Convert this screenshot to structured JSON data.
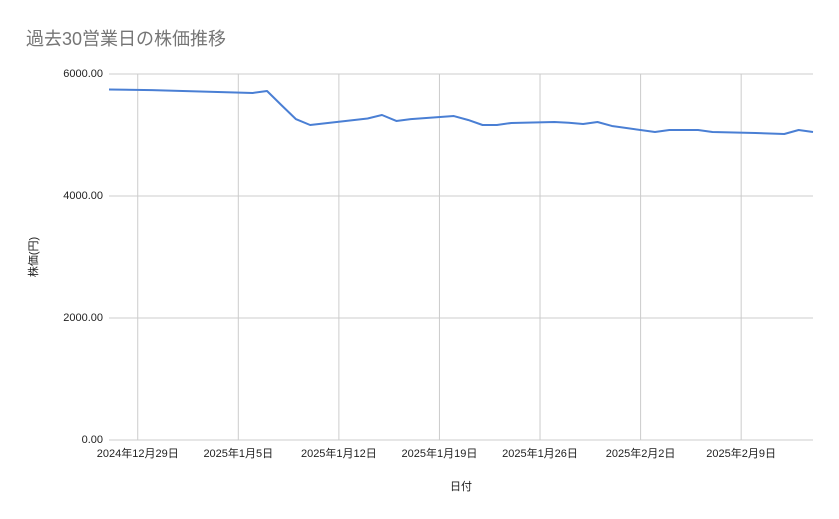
{
  "chart_data": {
    "type": "line",
    "title": "過去30営業日の株価推移",
    "xlabel": "日付",
    "ylabel": "株価(円)",
    "x": [
      "2024-12-27",
      "2024-12-30",
      "2025-01-06",
      "2025-01-07",
      "2025-01-08",
      "2025-01-09",
      "2025-01-10",
      "2025-01-14",
      "2025-01-15",
      "2025-01-16",
      "2025-01-17",
      "2025-01-20",
      "2025-01-21",
      "2025-01-22",
      "2025-01-23",
      "2025-01-24",
      "2025-01-27",
      "2025-01-28",
      "2025-01-29",
      "2025-01-30",
      "2025-01-31",
      "2025-02-03",
      "2025-02-04",
      "2025-02-05",
      "2025-02-06",
      "2025-02-07",
      "2025-02-10",
      "2025-02-12",
      "2025-02-13",
      "2025-02-14"
    ],
    "series": [
      {
        "name": "株価(円)",
        "color": "#4a7fd4",
        "values": [
          5746,
          5735,
          5689,
          5721,
          5490,
          5262,
          5164,
          5270,
          5328,
          5230,
          5260,
          5311,
          5246,
          5164,
          5164,
          5197,
          5213,
          5200,
          5180,
          5213,
          5148,
          5049,
          5082,
          5082,
          5082,
          5049,
          5033,
          5016,
          5082,
          5049
        ]
      }
    ],
    "xlim": [
      "2024-12-27",
      "2025-02-14"
    ],
    "xticks": [
      {
        "value": "2024-12-29",
        "label": "2024年12月29日"
      },
      {
        "value": "2025-01-05",
        "label": "2025年1月5日"
      },
      {
        "value": "2025-01-12",
        "label": "2025年1月12日"
      },
      {
        "value": "2025-01-19",
        "label": "2025年1月19日"
      },
      {
        "value": "2025-01-26",
        "label": "2025年1月26日"
      },
      {
        "value": "2025-02-02",
        "label": "2025年2月2日"
      },
      {
        "value": "2025-02-09",
        "label": "2025年2月9日"
      }
    ],
    "ylim": [
      0,
      6000
    ],
    "yticks": [
      {
        "value": 0,
        "label": "0.00"
      },
      {
        "value": 2000,
        "label": "2000.00"
      },
      {
        "value": 4000,
        "label": "4000.00"
      },
      {
        "value": 6000,
        "label": "6000.00"
      }
    ],
    "grid": true
  }
}
